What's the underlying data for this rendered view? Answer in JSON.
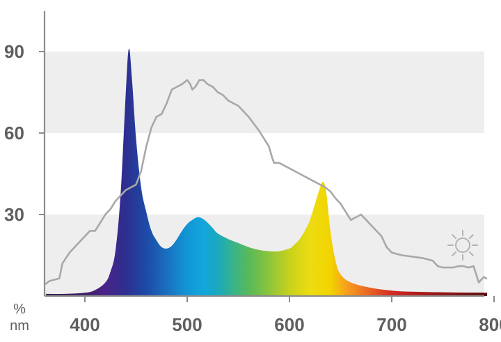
{
  "chart_data": {
    "type": "area",
    "x_unit": "nm",
    "y_unit": "%",
    "xlim": [
      362,
      800
    ],
    "ylim": [
      0,
      105
    ],
    "x_ticks": [
      {
        "value": 400,
        "label": "400"
      },
      {
        "value": 500,
        "label": "500"
      },
      {
        "value": 600,
        "label": "600"
      },
      {
        "value": 700,
        "label": "700"
      },
      {
        "value": 800,
        "label": "800"
      }
    ],
    "y_ticks": [
      {
        "value": 30,
        "label": "30"
      },
      {
        "value": 60,
        "label": "60"
      },
      {
        "value": 90,
        "label": "90"
      }
    ],
    "grid": "alternating horizontal bands",
    "band_color": "#eeeeee",
    "series": [
      {
        "style": "spectrum-filled-area",
        "x": [
          362,
          380,
          400,
          410,
          420,
          425,
          430,
          435,
          440,
          443,
          446,
          450,
          455,
          460,
          465,
          470,
          475,
          480,
          485,
          490,
          495,
          500,
          505,
          510,
          515,
          520,
          525,
          530,
          540,
          550,
          560,
          570,
          580,
          590,
          600,
          605,
          610,
          615,
          620,
          625,
          630,
          633,
          636,
          640,
          645,
          650,
          660,
          680,
          700,
          720,
          760,
          800
        ],
        "y": [
          0.8,
          0.8,
          1.2,
          2.2,
          5,
          9,
          17,
          38,
          75,
          91,
          80,
          58,
          40,
          31,
          24,
          20.5,
          18,
          17.5,
          18.5,
          21,
          24,
          26.5,
          28,
          29,
          28.5,
          27,
          25,
          23,
          21,
          19.5,
          18,
          17,
          16.5,
          16.5,
          17.5,
          19,
          21,
          24,
          28,
          34,
          40,
          42,
          38,
          24,
          13,
          8,
          5,
          3,
          2,
          1.6,
          1.3,
          1.2
        ]
      },
      {
        "style": "gray-line",
        "color": "#a8a8a8",
        "x": [
          362,
          365,
          370,
          375,
          378,
          385,
          390,
          400,
          405,
          410,
          415,
          420,
          425,
          430,
          435,
          440,
          445,
          450,
          455,
          460,
          465,
          470,
          475,
          480,
          482,
          485,
          490,
          495,
          500,
          503,
          505,
          508,
          512,
          516,
          520,
          525,
          530,
          535,
          540,
          545,
          550,
          560,
          570,
          575,
          580,
          583,
          585,
          590,
          595,
          600,
          610,
          620,
          630,
          635,
          640,
          645,
          650,
          655,
          660,
          665,
          670,
          675,
          680,
          685,
          690,
          695,
          700,
          705,
          710,
          720,
          730,
          740,
          745,
          750,
          755,
          760,
          765,
          770,
          775,
          780,
          785,
          790,
          795,
          800
        ],
        "y": [
          4.5,
          5.5,
          6,
          6.5,
          12,
          16,
          18,
          22,
          24,
          24,
          27,
          30,
          32,
          35,
          37,
          39,
          40,
          41,
          46,
          55,
          62,
          66,
          67,
          71,
          73,
          76,
          77,
          78,
          79.5,
          78,
          76,
          77,
          79.5,
          79.5,
          78,
          77,
          75,
          74,
          72,
          71,
          70,
          66,
          61,
          58,
          55,
          51,
          49,
          49,
          48,
          47,
          45,
          43,
          41,
          40,
          38.5,
          36,
          34,
          31,
          28,
          29,
          30,
          28,
          26,
          24,
          22,
          18,
          16,
          15.5,
          15,
          14.5,
          14,
          13,
          11,
          10.5,
          10.5,
          10.5,
          11,
          11,
          10.5,
          11,
          5,
          7,
          6,
          5
        ]
      }
    ],
    "icon": "sun-icon"
  }
}
